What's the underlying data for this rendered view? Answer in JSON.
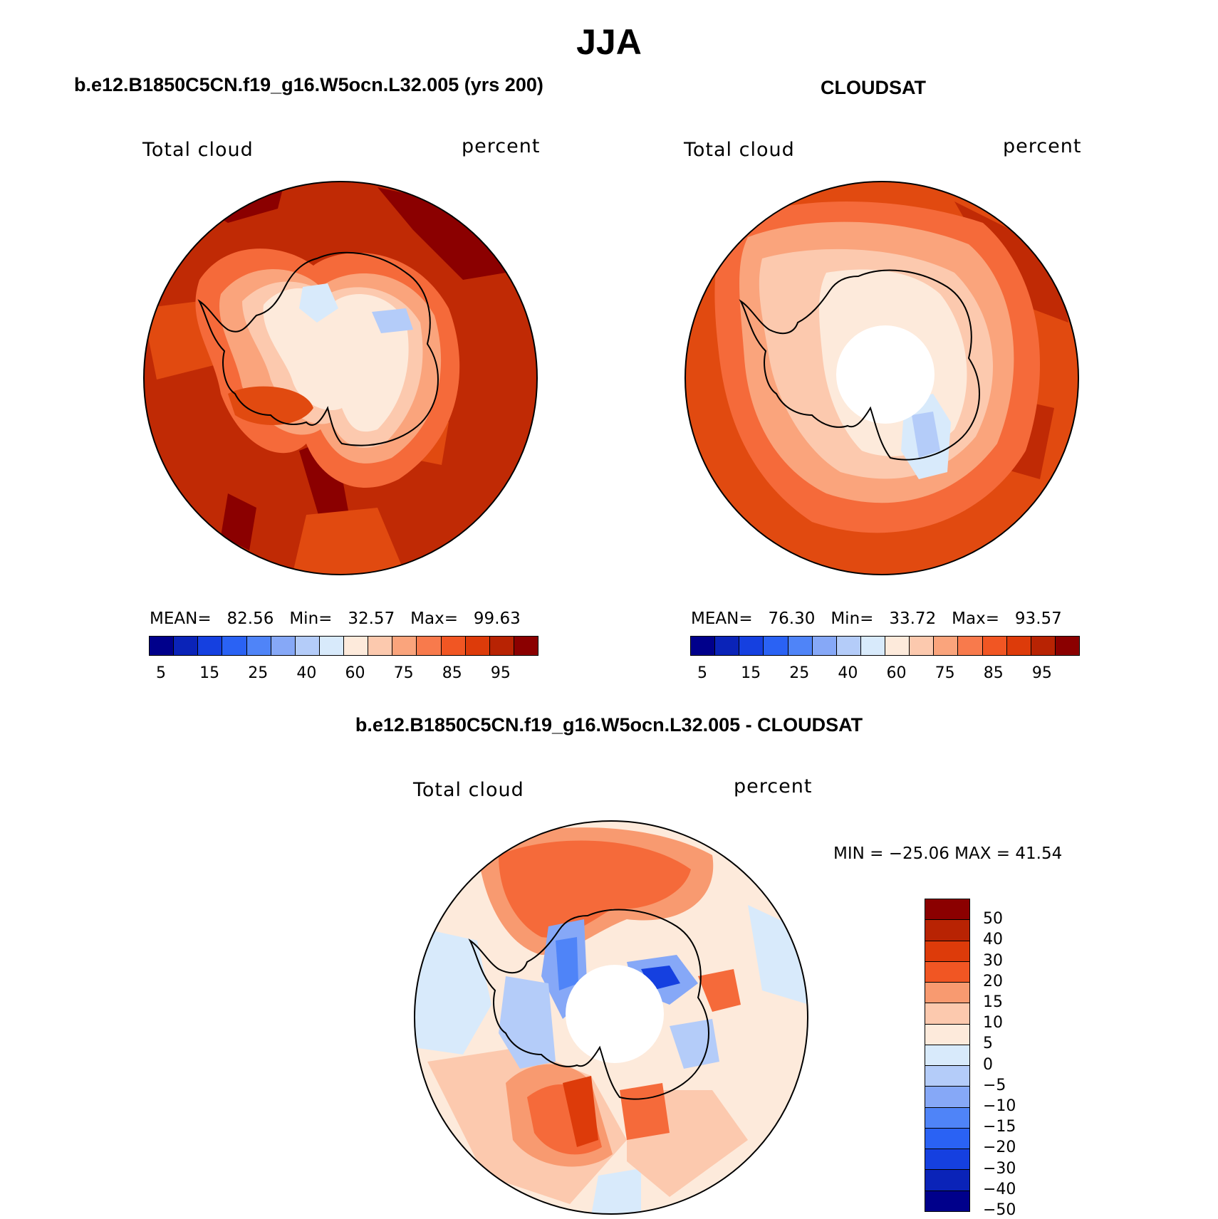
{
  "title": "JJA",
  "panels": {
    "model": {
      "case_title": "b.e12.B1850C5CN.f19_g16.W5ocn.L32.005 (yrs 200)",
      "field": "Total cloud",
      "units": "percent",
      "stats": {
        "mean_label": "MEAN=",
        "mean": "82.56",
        "min_label": "Min=",
        "min": "32.57",
        "max_label": "Max=",
        "max": "99.63"
      }
    },
    "obs": {
      "case_title": "CLOUDSAT",
      "field": "Total cloud",
      "units": "percent",
      "stats": {
        "mean_label": "MEAN=",
        "mean": "76.30",
        "min_label": "Min=",
        "min": "33.72",
        "max_label": "Max=",
        "max": "93.57"
      }
    },
    "diff": {
      "case_title": "b.e12.B1850C5CN.f19_g16.W5ocn.L32.005 - CLOUDSAT",
      "field": "Total cloud",
      "units": "percent",
      "minmax": "MIN = −25.06 MAX =   41.54"
    }
  },
  "colorbar_abs": {
    "colors": [
      "#00008b",
      "#0a23b8",
      "#1540e0",
      "#2a62f4",
      "#4f84f8",
      "#86a8f7",
      "#b4ccf9",
      "#d8eafb",
      "#fdeadb",
      "#fcc9ae",
      "#faa47c",
      "#f87a4c",
      "#f15623",
      "#dd3b0a",
      "#b82303",
      "#8b0000"
    ],
    "tick_labels": [
      "5",
      "15",
      "25",
      "40",
      "60",
      "75",
      "85",
      "95"
    ]
  },
  "colorbar_diff": {
    "colors": [
      "#8b0000",
      "#b82303",
      "#dd3b0a",
      "#f15623",
      "#f89a70",
      "#fcc9ae",
      "#fdeadb",
      "#d8eafb",
      "#b4ccf9",
      "#86a8f7",
      "#4f84f8",
      "#2a62f4",
      "#1540e0",
      "#0a23b8",
      "#00008b"
    ],
    "tick_labels": [
      "50",
      "40",
      "30",
      "20",
      "15",
      "10",
      "5",
      "0",
      "−5",
      "−10",
      "−15",
      "−20",
      "−30",
      "−40",
      "−50"
    ]
  }
}
